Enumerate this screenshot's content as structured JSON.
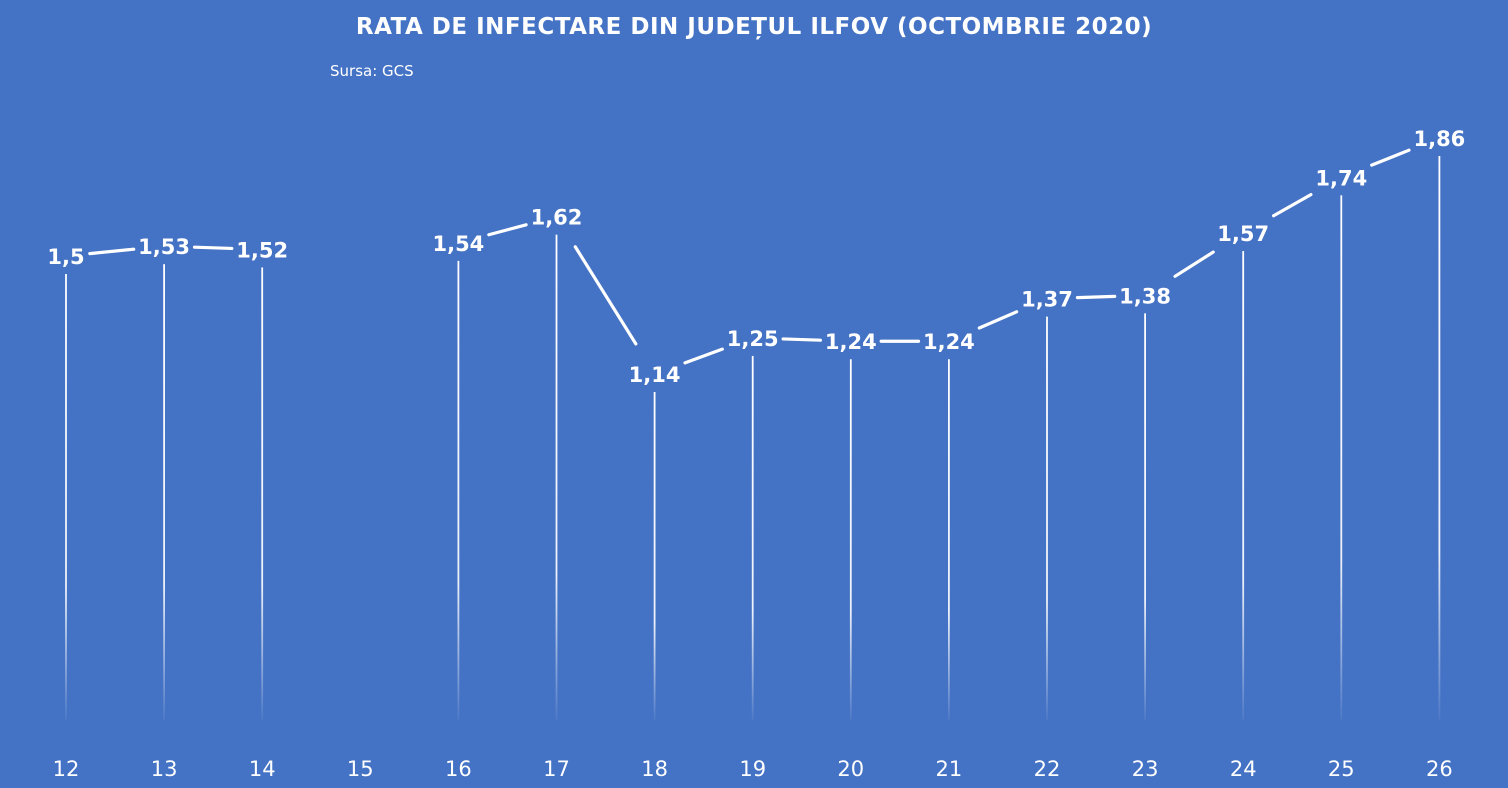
{
  "chart_data": {
    "type": "line",
    "title": "RATA DE INFECTARE DIN JUDEȚUL ILFOV (OCTOMBRIE 2020)",
    "subtitle": "Sursa: GCS",
    "categories": [
      "12",
      "13",
      "14",
      "15",
      "16",
      "17",
      "18",
      "19",
      "20",
      "21",
      "22",
      "23",
      "24",
      "25",
      "26"
    ],
    "series": [
      {
        "values": [
          1.5,
          1.53,
          1.52,
          null,
          1.54,
          1.62,
          1.14,
          1.25,
          1.24,
          1.24,
          1.37,
          1.38,
          1.57,
          1.74,
          1.86
        ],
        "labels": [
          "1,5",
          "1,53",
          "1,52",
          "",
          "1,54",
          "1,62",
          "1,14",
          "1,25",
          "1,24",
          "1,24",
          "1,37",
          "1,38",
          "1,57",
          "1,74",
          "1,86"
        ]
      }
    ],
    "drop_lines": true,
    "grid": false,
    "legend": "none",
    "colors": {
      "background": "#4472c4",
      "line": "#ffffff",
      "text": "#ffffff"
    }
  }
}
